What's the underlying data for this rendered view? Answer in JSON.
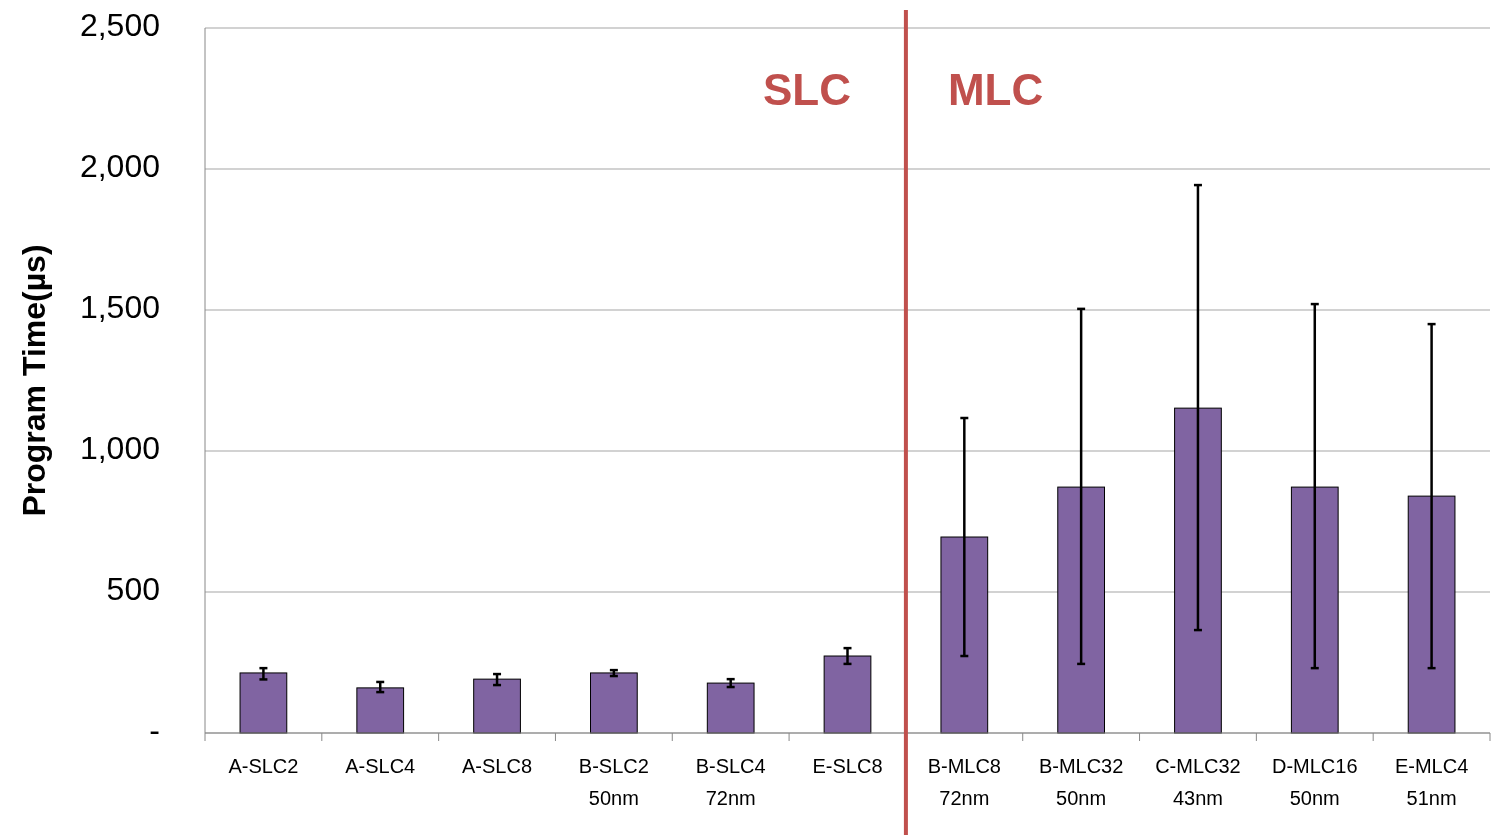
{
  "chart_data": {
    "type": "bar",
    "ylabel": "Program Time(µs)",
    "categories": [
      "A-SLC2",
      "A-SLC4",
      "A-SLC8",
      "B-SLC2\n50nm",
      "B-SLC4\n72nm",
      "E-SLC8",
      "B-MLC8\n72nm",
      "B-MLC32\n50nm",
      "C-MLC32\n43nm",
      "D-MLC16\n50nm",
      "E-MLC4\n51nm"
    ],
    "series": [
      {
        "color": "#8064a2",
        "values": [
          213,
          160,
          191,
          213,
          177,
          273,
          695,
          872,
          1152,
          872,
          840
        ],
        "errors": [
          [
            190,
            230
          ],
          [
            145,
            181
          ],
          [
            170,
            209
          ],
          [
            202,
            223
          ],
          [
            163,
            191
          ],
          [
            245,
            301
          ],
          [
            273,
            1117
          ],
          [
            245,
            1504
          ],
          [
            365,
            1943
          ],
          [
            230,
            1521
          ],
          [
            230,
            1450
          ]
        ]
      }
    ],
    "ylim": [
      0,
      2500
    ],
    "yticks": [
      {
        "value": 0,
        "label": "-"
      },
      {
        "value": 500,
        "label": "500"
      },
      {
        "value": 1000,
        "label": "1,000"
      },
      {
        "value": 1500,
        "label": "1,500"
      },
      {
        "value": 2000,
        "label": "2,000"
      },
      {
        "value": 2500,
        "label": "2,500"
      }
    ],
    "grid": "y",
    "ref_lines": [
      {
        "axis": "x",
        "value": "B-MLC8\n72nm",
        "color": "#c0504d"
      }
    ],
    "annotations": [
      "SLC",
      "MLC"
    ]
  }
}
